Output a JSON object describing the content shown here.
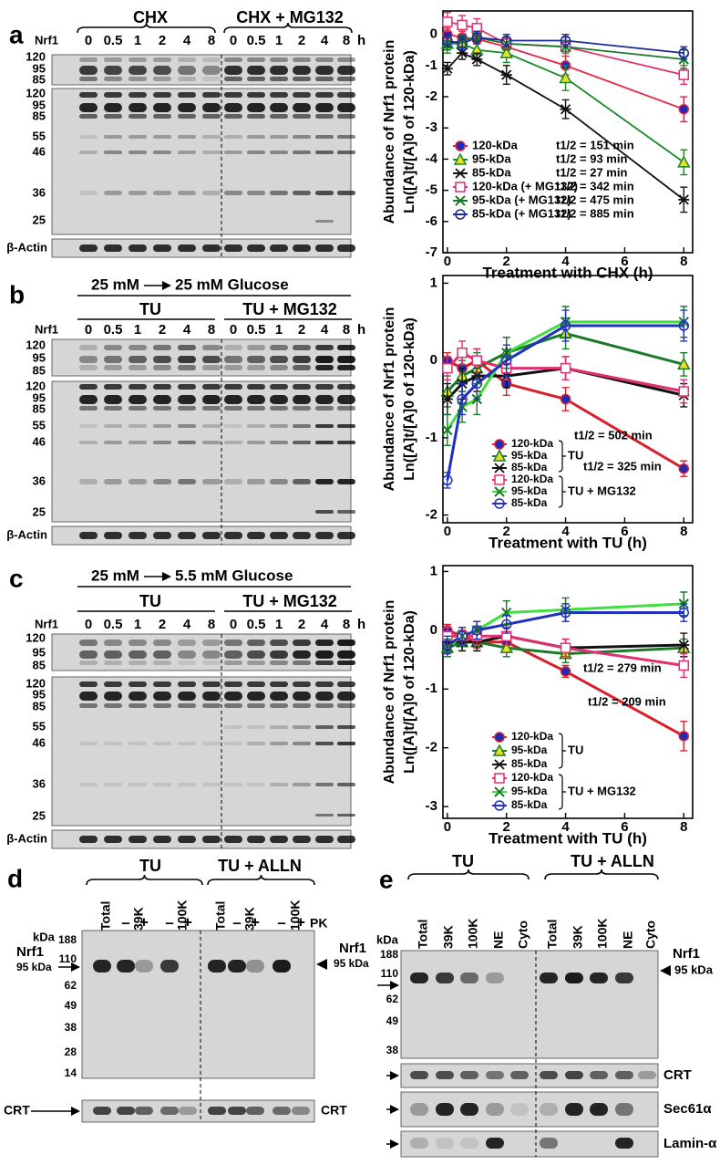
{
  "figure": {
    "a": {
      "label": "a",
      "groups": [
        "CHX",
        "CHX + MG132"
      ],
      "lanes": [
        "0",
        "0.5",
        "1",
        "2",
        "4",
        "8",
        "0",
        "0.5",
        "1",
        "2",
        "4",
        "8"
      ],
      "unit": "h",
      "protein": "Nrf1",
      "mw_top": [
        "120",
        "95",
        "85"
      ],
      "mw_main": [
        "120",
        "95",
        "85",
        "55",
        "46",
        "36",
        "25"
      ],
      "loading": "β-Actin"
    },
    "b": {
      "label": "b",
      "condition": [
        "25 mM",
        "25 mM Glucose"
      ],
      "groups": [
        "TU",
        "TU + MG132"
      ],
      "lanes": [
        "0",
        "0.5",
        "1",
        "2",
        "4",
        "8",
        "0",
        "0.5",
        "1",
        "2",
        "4",
        "8"
      ],
      "unit": "h",
      "protein": "Nrf1",
      "mw_top": [
        "120",
        "95",
        "85"
      ],
      "mw_main": [
        "120",
        "95",
        "85",
        "55",
        "46",
        "36",
        "25"
      ],
      "loading": "β-Actin"
    },
    "c": {
      "label": "c",
      "condition": [
        "25 mM",
        "5.5 mM Glucose"
      ],
      "groups": [
        "TU",
        "TU + MG132"
      ],
      "lanes": [
        "0",
        "0.5",
        "1",
        "2",
        "4",
        "8",
        "0",
        "0.5",
        "1",
        "2",
        "4",
        "8"
      ],
      "unit": "h",
      "protein": "Nrf1",
      "mw_top": [
        "120",
        "95",
        "85"
      ],
      "mw_main": [
        "120",
        "95",
        "85",
        "55",
        "46",
        "36",
        "25"
      ],
      "loading": "β-Actin"
    },
    "d": {
      "label": "d",
      "groups": [
        "TU",
        "TU + ALLN"
      ],
      "lanes": [
        "Total",
        "39K",
        "100K",
        "Total",
        "39K",
        "100K"
      ],
      "pk": [
        "–",
        "+",
        "–",
        "+",
        "–",
        "+",
        "–",
        "+"
      ],
      "pk_label": "PK",
      "kda": "kDa",
      "mw": [
        "188",
        "110",
        "62",
        "49",
        "38",
        "28",
        "14"
      ],
      "protein": "Nrf1",
      "band": "95 kDa",
      "loading": [
        "CRT",
        "CRT"
      ]
    },
    "e": {
      "label": "e",
      "groups": [
        "TU",
        "TU + ALLN"
      ],
      "lanes": [
        "Total",
        "39K",
        "100K",
        "NE",
        "Cyto",
        "Total",
        "39K",
        "100K",
        "NE",
        "Cyto"
      ],
      "kda": "kDa",
      "mw": [
        "188",
        "110",
        "62",
        "49",
        "38"
      ],
      "protein": "Nrf1",
      "band": "95 kDa",
      "strips": [
        "CRT",
        "Sec61α",
        "Lamin-α"
      ]
    }
  },
  "chart_data": [
    {
      "type": "line",
      "y_label": [
        "Abundance of Nrf1 protein",
        "Ln([A]t/[A]0 of 120-kDa)"
      ],
      "x_label": "Treatment with CHX (h)",
      "x": [
        0,
        0.5,
        1,
        2,
        4,
        8
      ],
      "xlim": [
        -0.15,
        8.3
      ],
      "xticks": [
        0,
        2,
        4,
        6,
        8
      ],
      "ylim": [
        -7,
        0.75
      ],
      "yticks": [
        -7,
        -6,
        -5,
        -4,
        -3,
        -2,
        -1,
        0
      ],
      "series": [
        {
          "name": "120-kDa",
          "half_life": "t1/2 = 151 min",
          "color": "#e8203c",
          "marker": "circle",
          "fill": "#1e2ab8",
          "values": [
            0,
            -0.1,
            -0.15,
            -0.4,
            -1.0,
            -2.4
          ],
          "errors": [
            0.2,
            0.2,
            0.15,
            0.2,
            0.3,
            0.4
          ]
        },
        {
          "name": "95-kDa",
          "half_life": "t1/2 =  93 min",
          "color": "#1a8a2a",
          "marker": "triangle",
          "fill": "#e8e020",
          "values": [
            -0.3,
            -0.3,
            -0.5,
            -0.6,
            -1.4,
            -4.1
          ],
          "errors": [
            0.3,
            0.3,
            0.3,
            0.3,
            0.4,
            0.4
          ]
        },
        {
          "name": "85-kDa",
          "half_life": "t1/2 = 27 min",
          "color": "#111111",
          "marker": "star",
          "fill": "none",
          "values": [
            -1.1,
            -0.6,
            -0.8,
            -1.3,
            -2.4,
            -5.3
          ],
          "errors": [
            0.2,
            0.2,
            0.2,
            0.3,
            0.3,
            0.4
          ]
        },
        {
          "name": "120-kDa (+ MG132)",
          "half_life": "t1/2 = 342 min",
          "color": "#e03070",
          "marker": "square",
          "fill": "none",
          "values": [
            0.4,
            0.3,
            0.2,
            -0.3,
            -0.4,
            -1.3
          ],
          "errors": [
            0.3,
            0.3,
            0.3,
            0.2,
            0.3,
            0.3
          ]
        },
        {
          "name": "95-kDa (+ MG132)",
          "half_life": "t1/2 = 475 min",
          "color": "#1a7a2a",
          "marker": "x",
          "fill": "none",
          "values": [
            -0.3,
            -0.2,
            -0.1,
            -0.3,
            -0.4,
            -0.8
          ],
          "errors": [
            0.2,
            0.2,
            0.2,
            0.2,
            0.2,
            0.3
          ]
        },
        {
          "name": "85-kDa (+ MG132)",
          "half_life": "t1/2 = 885 min",
          "color": "#1a2a9a",
          "marker": "circle",
          "fill": "none",
          "values": [
            -0.2,
            -0.3,
            -0.1,
            -0.2,
            -0.2,
            -0.6
          ],
          "errors": [
            0.2,
            0.2,
            0.2,
            0.2,
            0.2,
            0.2
          ]
        }
      ]
    },
    {
      "type": "line",
      "y_label": [
        "Abundance of Nrf1 protein",
        "Ln([A]t/[A]0 of 120-kDa)"
      ],
      "x_label": "Treatment with TU (h)",
      "x": [
        0,
        0.5,
        1,
        2,
        4,
        8
      ],
      "xlim": [
        -0.15,
        8.3
      ],
      "xticks": [
        0,
        2,
        4,
        6,
        8
      ],
      "ylim": [
        -2.1,
        1.1
      ],
      "yticks": [
        -2,
        -1,
        0,
        1
      ],
      "legend_groups": [
        "TU",
        "TU + MG132"
      ],
      "annotations": [
        "t1/2 = 502 min",
        "t1/2 = 325 min"
      ],
      "series": [
        {
          "name": "120-kDa",
          "color": "#d8202c",
          "marker": "circle",
          "fill": "#1e2ab8",
          "values": [
            0,
            -0.1,
            0,
            -0.3,
            -0.5,
            -1.4
          ],
          "errors": [
            0.1,
            0.15,
            0.15,
            0.15,
            0.15,
            0.1
          ]
        },
        {
          "name": "95-kDa",
          "color": "#1a7a2a",
          "marker": "triangle",
          "fill": "#e8e020",
          "values": [
            -0.4,
            -0.2,
            -0.1,
            0.1,
            0.35,
            -0.05
          ],
          "errors": [
            0.2,
            0.2,
            0.2,
            0.2,
            0.2,
            0.15
          ]
        },
        {
          "name": "85-kDa",
          "color": "#111111",
          "marker": "star",
          "fill": "none",
          "values": [
            -0.5,
            -0.3,
            -0.2,
            -0.2,
            -0.1,
            -0.45
          ],
          "errors": [
            0.2,
            0.2,
            0.2,
            0.15,
            0.15,
            0.15
          ]
        },
        {
          "name": "120-kDa",
          "color": "#e03070",
          "marker": "square",
          "fill": "none",
          "values": [
            -0.1,
            0.1,
            0,
            -0.1,
            -0.1,
            -0.4
          ],
          "errors": [
            0.15,
            0.15,
            0.15,
            0.15,
            0.15,
            0.15
          ]
        },
        {
          "name": "95-kDa",
          "color": "#3ee03e",
          "marker": "x",
          "fill": "none",
          "values": [
            -0.9,
            -0.6,
            -0.5,
            0.1,
            0.5,
            0.5
          ],
          "errors": [
            0.2,
            0.2,
            0.2,
            0.2,
            0.2,
            0.2
          ]
        },
        {
          "name": "85-kDa",
          "color": "#2030c0",
          "marker": "circle",
          "fill": "none",
          "values": [
            -1.55,
            -0.5,
            -0.3,
            0,
            0.45,
            0.45
          ],
          "errors": [
            0.1,
            0.2,
            0.2,
            0.2,
            0.2,
            0.2
          ]
        }
      ]
    },
    {
      "type": "line",
      "y_label": [
        "Abundance of Nrf1 protein",
        "Ln([A]t/[A]0 of 120-kDa)"
      ],
      "x_label": "Treatment with TU  (h)",
      "x": [
        0,
        0.5,
        1,
        2,
        4,
        8
      ],
      "xlim": [
        -0.15,
        8.3
      ],
      "xticks": [
        0,
        2,
        4,
        6,
        8
      ],
      "ylim": [
        -3.2,
        1.1
      ],
      "yticks": [
        -3,
        -2,
        -1,
        0,
        1
      ],
      "legend_groups": [
        "TU",
        "TU + MG132"
      ],
      "annotations": [
        "t1/2 = 279 min",
        "t1/2 = 209 min"
      ],
      "series": [
        {
          "name": "120-kDa",
          "color": "#d8202c",
          "marker": "circle",
          "fill": "#1e2ab8",
          "values": [
            0,
            -0.1,
            -0.2,
            -0.2,
            -0.7,
            -1.8
          ],
          "errors": [
            0.1,
            0.1,
            0.1,
            0.15,
            0.1,
            0.25
          ]
        },
        {
          "name": "95-kDa",
          "color": "#1a7a2a",
          "marker": "triangle",
          "fill": "#e8e020",
          "values": [
            -0.3,
            -0.2,
            -0.2,
            -0.3,
            -0.4,
            -0.3
          ],
          "errors": [
            0.15,
            0.15,
            0.15,
            0.15,
            0.15,
            0.15
          ]
        },
        {
          "name": "85-kDa",
          "color": "#111111",
          "marker": "star",
          "fill": "none",
          "values": [
            -0.2,
            -0.2,
            -0.2,
            -0.1,
            -0.3,
            -0.25
          ],
          "errors": [
            0.15,
            0.15,
            0.15,
            0.15,
            0.15,
            0.2
          ]
        },
        {
          "name": "120-kDa",
          "color": "#e03070",
          "marker": "square",
          "fill": "none",
          "values": [
            -0.1,
            -0.1,
            -0.1,
            -0.1,
            -0.3,
            -0.6
          ],
          "errors": [
            0.15,
            0.15,
            0.15,
            0.15,
            0.15,
            0.2
          ]
        },
        {
          "name": "95-kDa",
          "color": "#3ee03e",
          "marker": "x",
          "fill": "none",
          "values": [
            -0.3,
            -0.1,
            0,
            0.3,
            0.35,
            0.45
          ],
          "errors": [
            0.15,
            0.15,
            0.15,
            0.2,
            0.2,
            0.2
          ]
        },
        {
          "name": "85-kDa",
          "color": "#2030c0",
          "marker": "circle",
          "fill": "none",
          "values": [
            -0.25,
            -0.1,
            0,
            0.1,
            0.3,
            0.3
          ],
          "errors": [
            0.15,
            0.15,
            0.15,
            0.15,
            0.15,
            0.15
          ]
        }
      ]
    }
  ]
}
